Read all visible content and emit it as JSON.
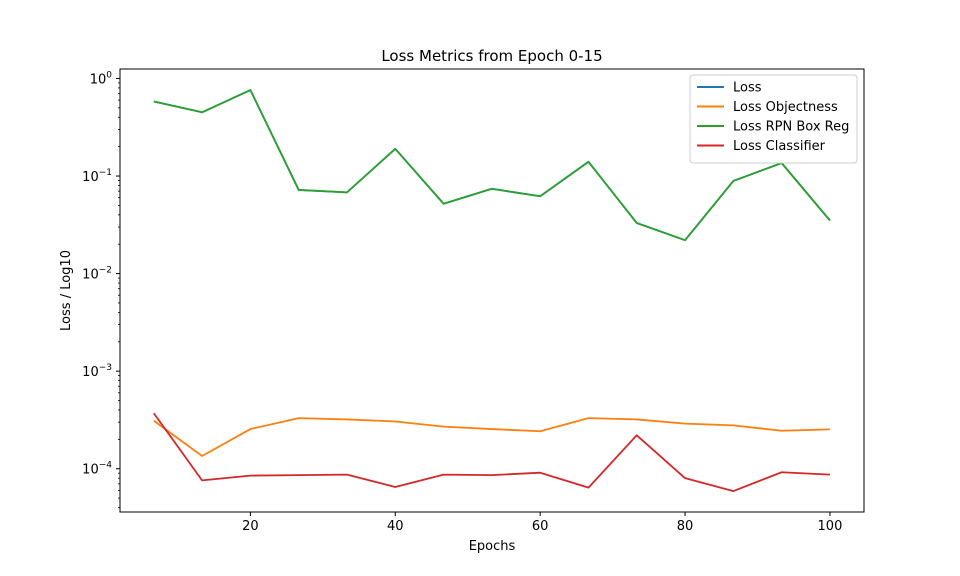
{
  "chart_data": {
    "type": "line",
    "title": "Loss Metrics from Epoch 0-15",
    "xlabel": "Epochs",
    "ylabel": "Loss / Log10",
    "yscale": "log",
    "xlim": [
      2.0,
      104.7
    ],
    "ylim": [
      3.6e-05,
      1.25
    ],
    "x_ticks": [
      20,
      40,
      60,
      80,
      100
    ],
    "y_ticks": [
      {
        "value": 0.0001,
        "base": "10",
        "exp": "−4"
      },
      {
        "value": 0.001,
        "base": "10",
        "exp": "−3"
      },
      {
        "value": 0.01,
        "base": "10",
        "exp": "−2"
      },
      {
        "value": 0.1,
        "base": "10",
        "exp": "−1"
      },
      {
        "value": 1,
        "base": "10",
        "exp": "0"
      }
    ],
    "grid": false,
    "legend_position": "top-right",
    "x": [
      6.67,
      13.33,
      20.0,
      26.67,
      33.33,
      40.0,
      46.67,
      53.33,
      60.0,
      66.67,
      73.33,
      80.0,
      86.67,
      93.33,
      100.0
    ],
    "series": [
      {
        "name": "Loss",
        "color": "#1f77b4",
        "values": [
          0.58,
          0.45,
          0.76,
          0.072,
          0.068,
          0.19,
          0.052,
          0.074,
          0.062,
          0.14,
          0.033,
          0.022,
          0.089,
          0.136,
          0.035
        ]
      },
      {
        "name": "Loss Objectness",
        "color": "#ff7f0e",
        "values": [
          0.00031,
          0.000135,
          0.000255,
          0.00033,
          0.00032,
          0.000305,
          0.00027,
          0.000255,
          0.000242,
          0.00033,
          0.00032,
          0.00029,
          0.000278,
          0.000245,
          0.000253
        ]
      },
      {
        "name": "Loss RPN Box Reg",
        "color": "#2ca02c",
        "values": [
          0.58,
          0.45,
          0.76,
          0.072,
          0.068,
          0.19,
          0.052,
          0.074,
          0.062,
          0.14,
          0.033,
          0.022,
          0.089,
          0.136,
          0.035
        ]
      },
      {
        "name": "Loss Classifier",
        "color": "#d62728",
        "values": [
          0.00037,
          7.6e-05,
          8.5e-05,
          8.6e-05,
          8.7e-05,
          6.5e-05,
          8.7e-05,
          8.6e-05,
          9.1e-05,
          6.4e-05,
          0.00022,
          8e-05,
          5.9e-05,
          9.2e-05,
          8.7e-05
        ]
      }
    ]
  }
}
